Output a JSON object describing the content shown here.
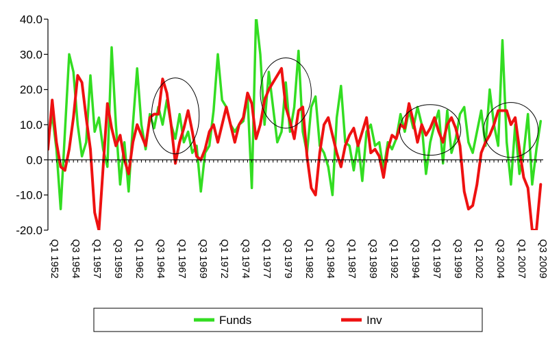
{
  "chart_data": {
    "type": "line",
    "title": "",
    "xlabel": "",
    "ylabel": "",
    "ylim": [
      -20,
      40
    ],
    "y_ticks": [
      "40.0",
      "30.0",
      "20.0",
      "10.0",
      "0.0",
      "-10.0",
      "-20.0"
    ],
    "y_tick_values": [
      40,
      30,
      20,
      10,
      0,
      -10,
      -20
    ],
    "x_ticks": [
      "Q1 1952",
      "Q3 1954",
      "Q1 1957",
      "Q3 1959",
      "Q1 1962",
      "Q3 1964",
      "Q1 1967",
      "Q3 1969",
      "Q1 1972",
      "Q3 1974",
      "Q1 1977",
      "Q3 1979",
      "Q1 1982",
      "Q3 1984",
      "Q1 1987",
      "Q3 1989",
      "Q1 1992",
      "Q3 1994",
      "Q1 1997",
      "Q3 1999",
      "Q1 2002",
      "Q3 2004",
      "Q1 2007",
      "Q3 2009"
    ],
    "x_tick_values": [
      1952.0,
      1954.5,
      1957.0,
      1959.5,
      1962.0,
      1964.5,
      1967.0,
      1969.5,
      1972.0,
      1974.5,
      1977.0,
      1979.5,
      1982.0,
      1984.5,
      1987.0,
      1989.5,
      1992.0,
      1994.5,
      1997.0,
      1999.5,
      2002.0,
      2004.5,
      2007.0,
      2009.5
    ],
    "xlim": [
      1952.0,
      2010.3
    ],
    "grid": false,
    "legend": "bottom",
    "series": [
      {
        "name": "Funds",
        "color": "#33dd22",
        "x": [
          1952.0,
          1952.5,
          1953.0,
          1953.5,
          1954.0,
          1954.5,
          1955.0,
          1955.5,
          1956.0,
          1956.5,
          1957.0,
          1957.5,
          1958.0,
          1958.5,
          1959.0,
          1959.5,
          1960.0,
          1960.5,
          1961.0,
          1961.5,
          1962.0,
          1962.5,
          1963.0,
          1963.5,
          1964.0,
          1964.5,
          1965.0,
          1965.5,
          1966.0,
          1966.5,
          1967.0,
          1967.5,
          1968.0,
          1968.5,
          1969.0,
          1969.5,
          1970.0,
          1970.5,
          1971.0,
          1971.5,
          1972.0,
          1972.5,
          1973.0,
          1973.5,
          1974.0,
          1974.5,
          1975.0,
          1975.5,
          1976.0,
          1976.5,
          1977.0,
          1977.5,
          1978.0,
          1978.5,
          1979.0,
          1979.5,
          1980.0,
          1980.5,
          1981.0,
          1981.5,
          1982.0,
          1982.5,
          1983.0,
          1983.5,
          1984.0,
          1984.5,
          1985.0,
          1985.5,
          1986.0,
          1986.5,
          1987.0,
          1987.5,
          1988.0,
          1988.5,
          1989.0,
          1989.5,
          1990.0,
          1990.5,
          1991.0,
          1991.5,
          1992.0,
          1992.5,
          1993.0,
          1993.5,
          1994.0,
          1994.5,
          1995.0,
          1995.5,
          1996.0,
          1996.5,
          1997.0,
          1997.5,
          1998.0,
          1998.5,
          1999.0,
          1999.5,
          2000.0,
          2000.5,
          2001.0,
          2001.5,
          2002.0,
          2002.5,
          2003.0,
          2003.5,
          2004.0,
          2004.5,
          2005.0,
          2005.5,
          2006.0,
          2006.5,
          2007.0,
          2007.5,
          2008.0,
          2008.5,
          2009.0,
          2009.5,
          2010.0
        ],
        "values": [
          5,
          13,
          3,
          -14,
          8,
          30,
          25,
          10,
          1,
          5,
          24,
          8,
          12,
          3,
          -2,
          32,
          10,
          -7,
          5,
          -9,
          10,
          26,
          10,
          3,
          13,
          9,
          15,
          10,
          17,
          10,
          6,
          13,
          5,
          8,
          2,
          4,
          -9,
          2,
          4,
          14,
          30,
          17,
          15,
          10,
          8,
          10,
          11,
          18,
          -8,
          41,
          30,
          10,
          25,
          15,
          5,
          8,
          22,
          8,
          15,
          31,
          8,
          2,
          15,
          18,
          4,
          2,
          -2,
          -10,
          12,
          21,
          5,
          4,
          -3,
          5,
          -6,
          8,
          10,
          4,
          5,
          -3,
          5,
          3,
          6,
          13,
          8,
          14,
          9,
          15,
          10,
          -4,
          5,
          10,
          14,
          -1,
          14,
          2,
          6,
          13,
          15,
          5,
          2,
          8,
          14,
          4,
          20,
          10,
          4,
          34,
          5,
          -7,
          10,
          -4,
          2,
          13,
          -7,
          3,
          11
        ]
      },
      {
        "name": "Inv",
        "color": "#ee1111",
        "x": [
          1952.0,
          1952.5,
          1953.0,
          1953.5,
          1954.0,
          1954.5,
          1955.0,
          1955.5,
          1956.0,
          1956.5,
          1957.0,
          1957.5,
          1958.0,
          1958.5,
          1959.0,
          1959.5,
          1960.0,
          1960.5,
          1961.0,
          1961.5,
          1962.0,
          1962.5,
          1963.0,
          1963.5,
          1964.0,
          1964.5,
          1965.0,
          1965.5,
          1966.0,
          1966.5,
          1967.0,
          1967.5,
          1968.0,
          1968.5,
          1969.0,
          1969.5,
          1970.0,
          1970.5,
          1971.0,
          1971.5,
          1972.0,
          1972.5,
          1973.0,
          1973.5,
          1974.0,
          1974.5,
          1975.0,
          1975.5,
          1976.0,
          1976.5,
          1977.0,
          1977.5,
          1978.0,
          1978.5,
          1979.0,
          1979.5,
          1980.0,
          1980.5,
          1981.0,
          1981.5,
          1982.0,
          1982.5,
          1983.0,
          1983.5,
          1984.0,
          1984.5,
          1985.0,
          1985.5,
          1986.0,
          1986.5,
          1987.0,
          1987.5,
          1988.0,
          1988.5,
          1989.0,
          1989.5,
          1990.0,
          1990.5,
          1991.0,
          1991.5,
          1992.0,
          1992.5,
          1993.0,
          1993.5,
          1994.0,
          1994.5,
          1995.0,
          1995.5,
          1996.0,
          1996.5,
          1997.0,
          1997.5,
          1998.0,
          1998.5,
          1999.0,
          1999.5,
          2000.0,
          2000.5,
          2001.0,
          2001.5,
          2002.0,
          2002.5,
          2003.0,
          2003.5,
          2004.0,
          2004.5,
          2005.0,
          2005.5,
          2006.0,
          2006.5,
          2007.0,
          2007.5,
          2008.0,
          2008.5,
          2009.0,
          2009.5,
          2010.0
        ],
        "values": [
          3,
          17,
          5,
          -2,
          -3,
          3,
          12,
          24,
          22,
          12,
          3,
          -15,
          -20,
          -2,
          16,
          9,
          4,
          7,
          0,
          -4,
          5,
          10,
          7,
          4,
          12,
          13,
          13,
          23,
          19,
          10,
          -1,
          5,
          9,
          14,
          8,
          1,
          0,
          3,
          8,
          10,
          5,
          10,
          15,
          10,
          5,
          10,
          12,
          19,
          16,
          6,
          10,
          17,
          20,
          22,
          24,
          26,
          15,
          11,
          6,
          14,
          15,
          1,
          -8,
          -10,
          2,
          10,
          12,
          7,
          2,
          -2,
          4,
          7,
          9,
          4,
          8,
          12,
          2,
          3,
          1,
          -5,
          3,
          7,
          6,
          10,
          9,
          16,
          11,
          5,
          10,
          7,
          9,
          12,
          8,
          5,
          10,
          12,
          9,
          4,
          -9,
          -14,
          -13,
          -7,
          2,
          5,
          7,
          10,
          14,
          14,
          14,
          10,
          12,
          3,
          -5,
          -8,
          -20,
          -20,
          -7
        ]
      }
    ]
  },
  "annotations": {
    "ellipses": [
      {
        "cx": 1967.0,
        "cy": 12.5,
        "rx": 2.8,
        "ry": 10.8
      },
      {
        "cx": 1980.0,
        "cy": 19.0,
        "rx": 3.0,
        "ry": 10.0
      },
      {
        "cx": 1997.0,
        "cy": 8.5,
        "rx": 3.6,
        "ry": 7.2
      },
      {
        "cx": 2006.5,
        "cy": 8.5,
        "rx": 3.2,
        "ry": 7.8
      }
    ]
  }
}
